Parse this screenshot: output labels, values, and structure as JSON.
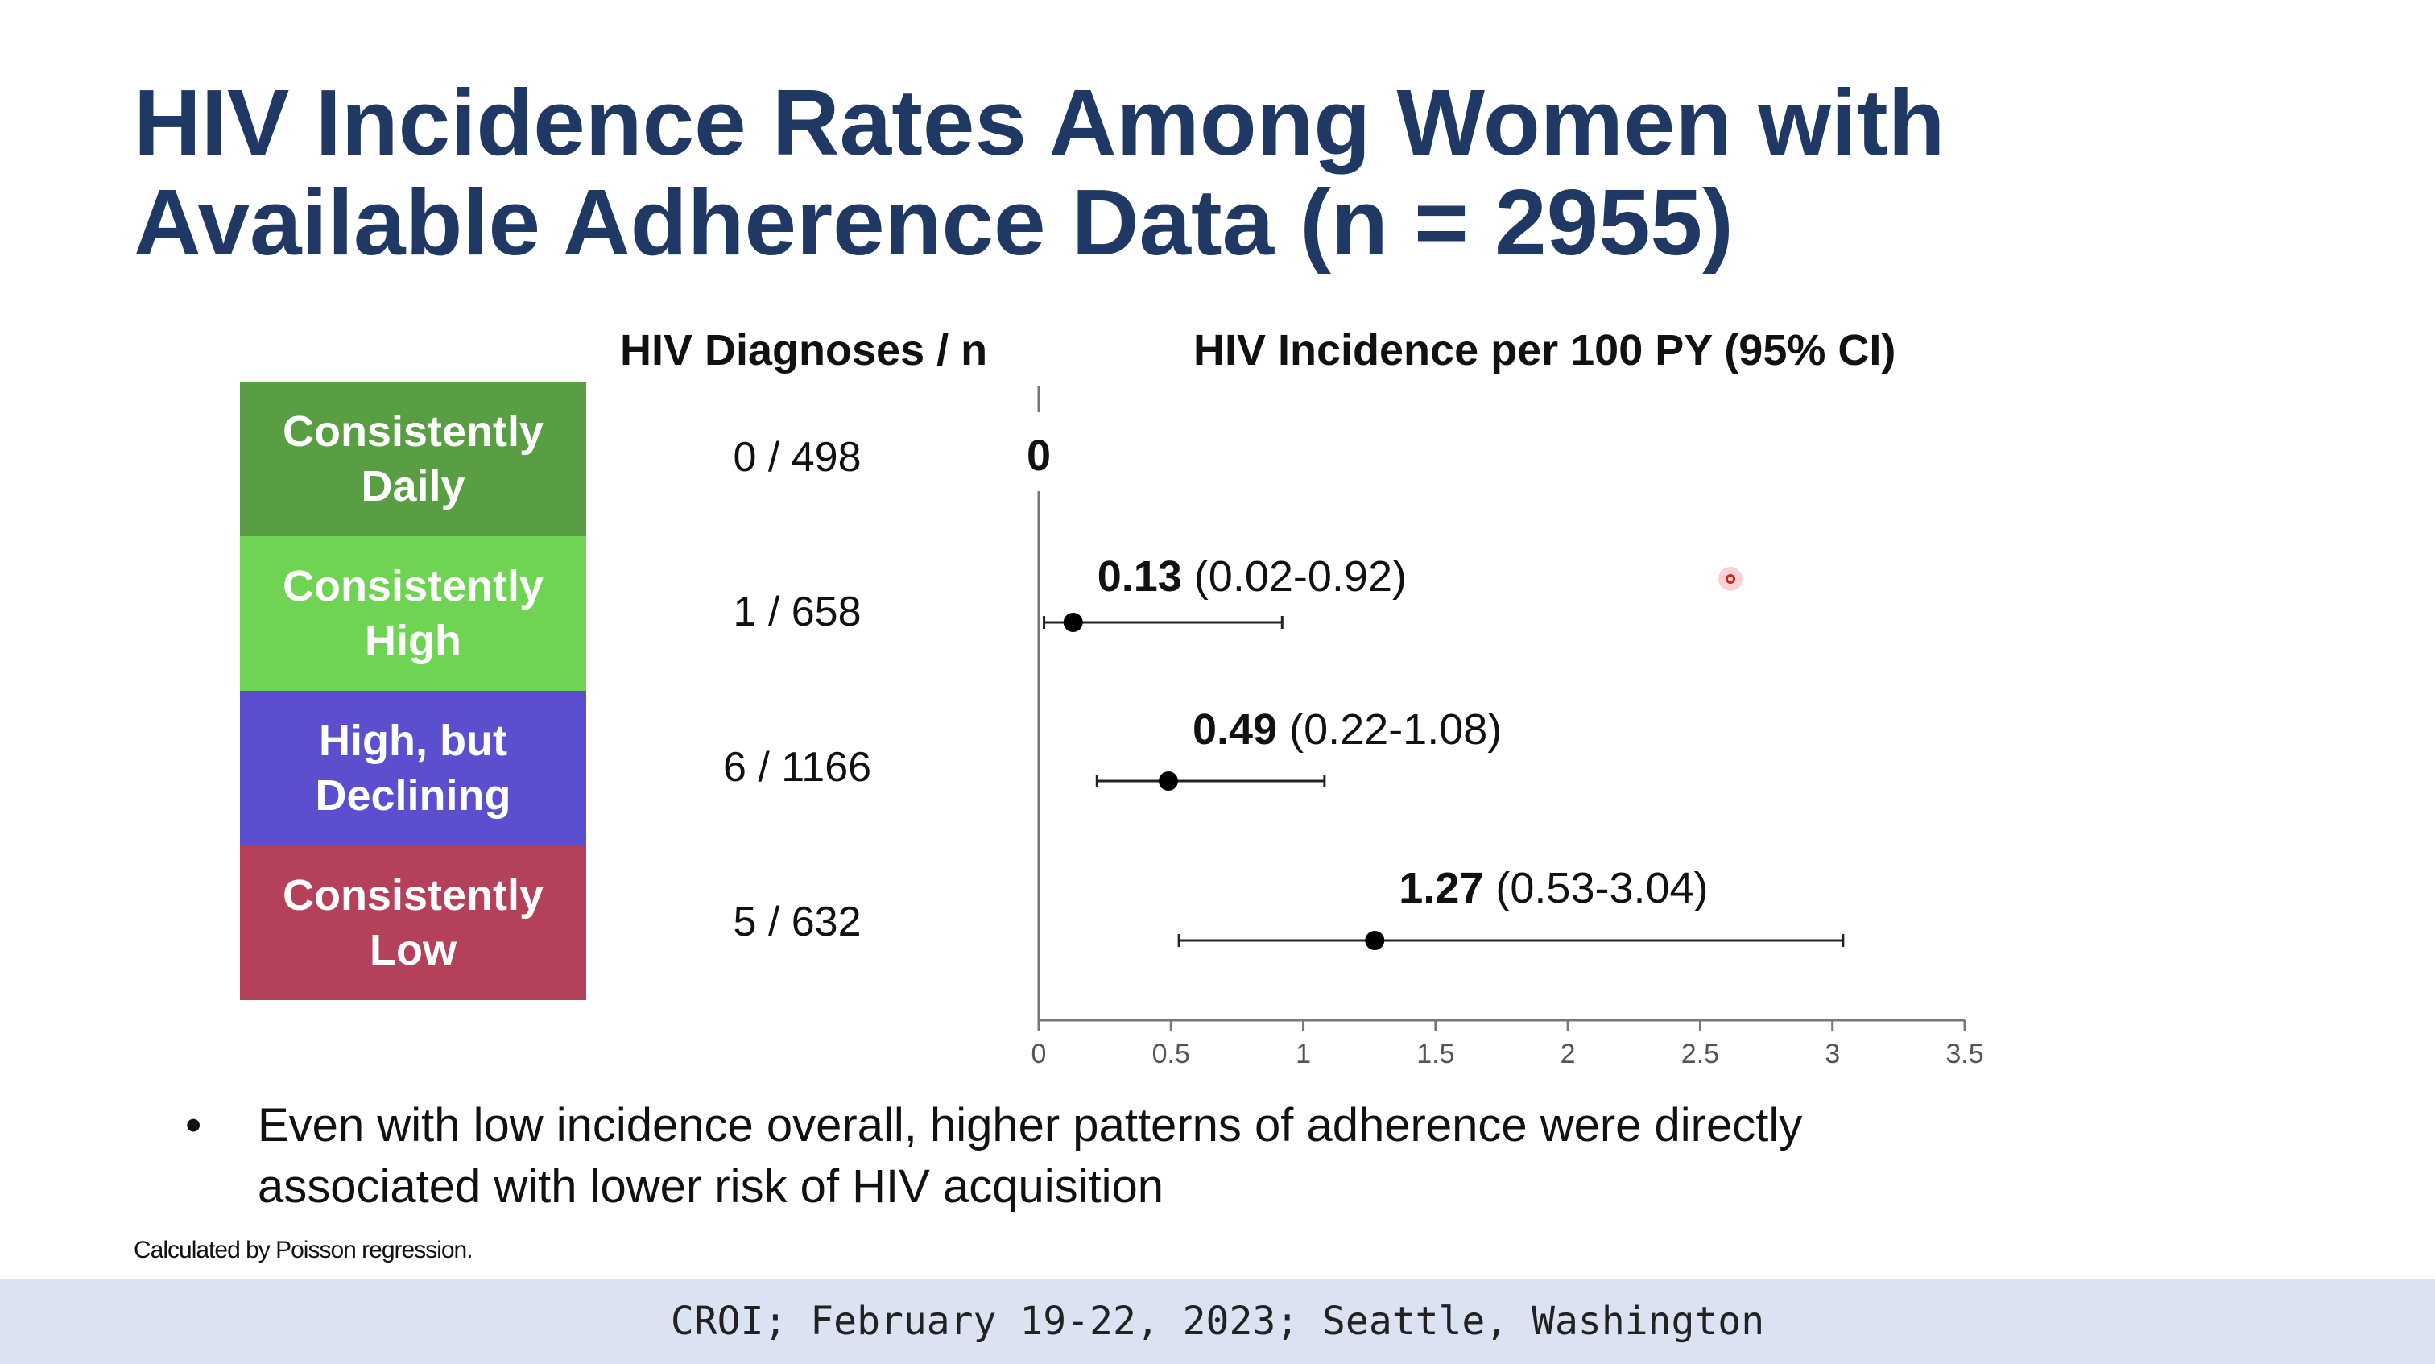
{
  "slide": {
    "title_line1": "HIV Incidence Rates Among Women with",
    "title_line2": "Available Adherence Data (n = 2955)",
    "header_diagnoses": "HIV Diagnoses / n",
    "header_incidence": "HIV Incidence per 100 PY (95% CI)",
    "bullet_marker": "•",
    "bullet_line1": "Even with low incidence overall, higher patterns of adherence were directly",
    "bullet_line2": "associated with lower risk of HIV acquisition",
    "footnote": "Calculated by Poisson regression.",
    "footer": "CROI; February 19-22, 2023; Seattle, Washington"
  },
  "groups": [
    {
      "line1": "Consistently",
      "line2": "Daily",
      "color": "#5a9e44",
      "diagnoses": "0 / 498"
    },
    {
      "line1": "Consistently",
      "line2": "High",
      "color": "#6fd454",
      "diagnoses": "1 / 658"
    },
    {
      "line1": "High, but",
      "line2": "Declining",
      "color": "#5b4fd0",
      "diagnoses": "6 / 1166"
    },
    {
      "line1": "Consistently",
      "line2": "Low",
      "color": "#b5405a",
      "diagnoses": "5 / 632"
    }
  ],
  "chart_data": {
    "type": "scatter",
    "subtype": "forest-plot",
    "title": "HIV Incidence per 100 PY (95% CI)",
    "xlim": [
      0,
      3.5
    ],
    "xticks": [
      "0",
      "0.5",
      "1",
      "1.5",
      "2",
      "2.5",
      "3",
      "3.5"
    ],
    "grid": false,
    "points": [
      {
        "group": "Consistently Daily",
        "estimate": 0,
        "ci_low": null,
        "ci_high": null,
        "label": "0",
        "ci_label": ""
      },
      {
        "group": "Consistently High",
        "estimate": 0.13,
        "ci_low": 0.02,
        "ci_high": 0.92,
        "label": "0.13",
        "ci_label": "(0.02-0.92)"
      },
      {
        "group": "High, but Declining",
        "estimate": 0.49,
        "ci_low": 0.22,
        "ci_high": 1.08,
        "label": "0.49",
        "ci_label": "(0.22-1.08)"
      },
      {
        "group": "Consistently Low",
        "estimate": 1.27,
        "ci_low": 0.53,
        "ci_high": 3.04,
        "label": "1.27",
        "ci_label": "(0.53-3.04)"
      }
    ]
  }
}
